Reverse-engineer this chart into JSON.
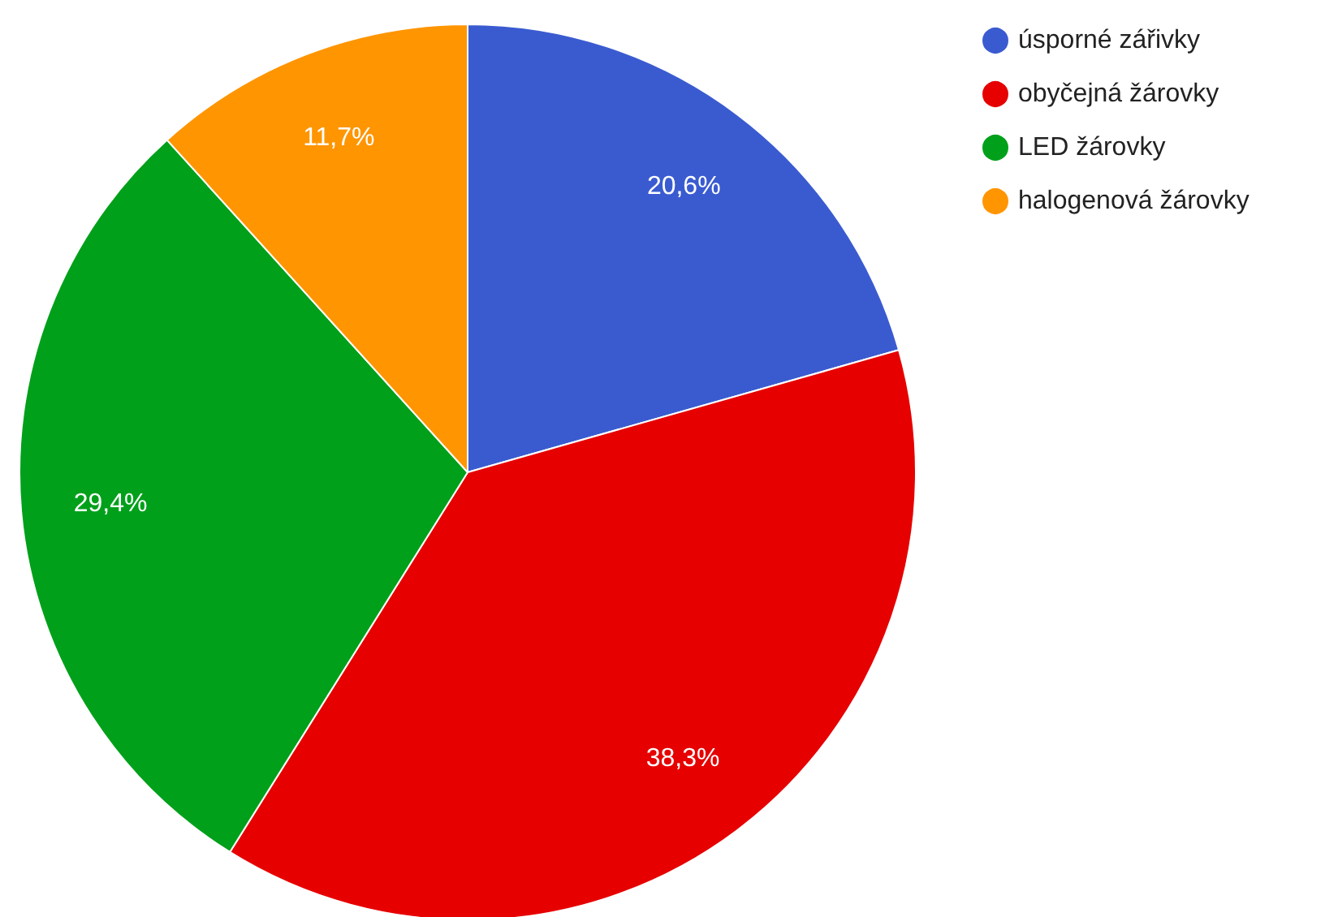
{
  "chart_data": {
    "type": "pie",
    "categories": [
      "úsporné zářivky",
      "obyčejná žárovky",
      "LED žárovky",
      "halogenová žárovky"
    ],
    "values": [
      20.6,
      38.3,
      29.4,
      11.7
    ],
    "value_labels": [
      "20,6%",
      "38,3%",
      "29,4%",
      "11,7%"
    ],
    "colors": [
      "#3a5bd0",
      "#e60000",
      "#00a01a",
      "#ff9500"
    ],
    "legend": "top right"
  }
}
